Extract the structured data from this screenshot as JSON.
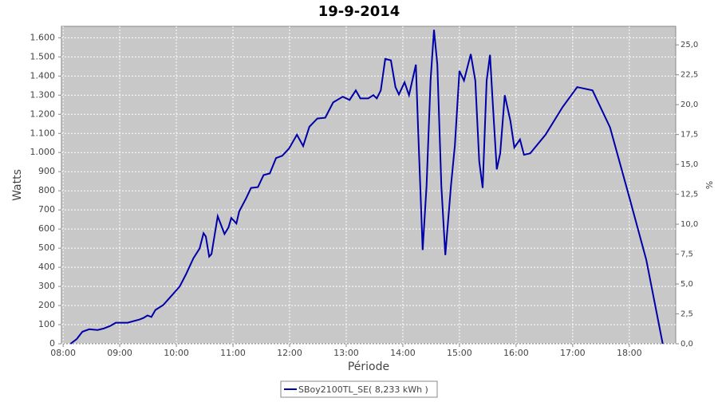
{
  "chart_data": {
    "type": "line",
    "title": "19-9-2014",
    "xlabel": "Période",
    "ylabel": "Watts",
    "y2label": "%",
    "x": [
      8.13,
      8.24,
      8.34,
      8.46,
      8.61,
      8.72,
      8.83,
      8.93,
      9.14,
      9.35,
      9.42,
      9.49,
      9.56,
      9.63,
      9.77,
      9.92,
      10.06,
      10.17,
      10.3,
      10.41,
      10.48,
      10.52,
      10.58,
      10.62,
      10.73,
      10.85,
      10.92,
      10.97,
      11.06,
      11.11,
      11.23,
      11.32,
      11.44,
      11.54,
      11.65,
      11.76,
      11.87,
      11.99,
      12.13,
      12.24,
      12.35,
      12.49,
      12.63,
      12.77,
      12.94,
      13.06,
      13.17,
      13.25,
      13.39,
      13.48,
      13.54,
      13.61,
      13.69,
      13.79,
      13.87,
      13.93,
      14.03,
      14.11,
      14.23,
      14.27,
      14.35,
      14.42,
      14.49,
      14.55,
      14.61,
      14.68,
      14.75,
      14.85,
      14.92,
      15.0,
      15.08,
      15.2,
      15.28,
      15.35,
      15.41,
      15.48,
      15.54,
      15.59,
      15.66,
      15.72,
      15.8,
      15.9,
      15.97,
      16.07,
      16.14,
      16.25,
      16.52,
      16.82,
      17.08,
      17.35,
      17.66,
      18.01,
      18.3,
      18.59
    ],
    "series": [
      {
        "name": "SBoy2100TL_SE( 8,233 kWh )",
        "color": "#0000a8",
        "values": [
          0,
          25,
          63,
          76,
          72,
          80,
          93,
          110,
          110,
          127,
          135,
          148,
          140,
          177,
          203,
          253,
          300,
          363,
          447,
          498,
          578,
          561,
          456,
          469,
          667,
          574,
          608,
          658,
          629,
          692,
          760,
          815,
          819,
          882,
          891,
          971,
          983,
          1021,
          1093,
          1034,
          1135,
          1178,
          1182,
          1262,
          1292,
          1275,
          1325,
          1283,
          1283,
          1300,
          1283,
          1325,
          1490,
          1482,
          1342,
          1304,
          1367,
          1300,
          1460,
          1123,
          490,
          827,
          1376,
          1642,
          1460,
          827,
          464,
          827,
          1038,
          1427,
          1376,
          1515,
          1376,
          954,
          815,
          1376,
          1511,
          1249,
          912,
          996,
          1300,
          1165,
          1026,
          1068,
          988,
          996,
          1093,
          1237,
          1342,
          1325,
          1131,
          756,
          439,
          0
        ]
      }
    ],
    "xlim": [
      7.97,
      18.82
    ],
    "xticks": [
      {
        "value": 8,
        "label": "08:00"
      },
      {
        "value": 9,
        "label": "09:00"
      },
      {
        "value": 10,
        "label": "10:00"
      },
      {
        "value": 11,
        "label": "11:00"
      },
      {
        "value": 12,
        "label": "12:00"
      },
      {
        "value": 13,
        "label": "13:00"
      },
      {
        "value": 14,
        "label": "14:00"
      },
      {
        "value": 15,
        "label": "15:00"
      },
      {
        "value": 16,
        "label": "16:00"
      },
      {
        "value": 17,
        "label": "17:00"
      },
      {
        "value": 18,
        "label": "18:00"
      }
    ],
    "ylim": [
      0,
      1660
    ],
    "yticks": [
      0,
      100,
      200,
      300,
      400,
      500,
      600,
      700,
      800,
      900,
      {
        "value": 1000,
        "label": "1.000"
      },
      {
        "value": 1100,
        "label": "1.100"
      },
      {
        "value": 1200,
        "label": "1.200"
      },
      {
        "value": 1300,
        "label": "1.300"
      },
      {
        "value": 1400,
        "label": "1.400"
      },
      {
        "value": 1500,
        "label": "1.500"
      },
      {
        "value": 1600,
        "label": "1.600"
      }
    ],
    "y2lim": [
      0,
      26.55
    ],
    "y2ticks": [
      {
        "value": 0,
        "label": "0,0"
      },
      {
        "value": 2.5,
        "label": "2,5"
      },
      {
        "value": 5,
        "label": "5,0"
      },
      {
        "value": 7.5,
        "label": "7,5"
      },
      {
        "value": 10,
        "label": "10,0"
      },
      {
        "value": 12.5,
        "label": "12,5"
      },
      {
        "value": 15,
        "label": "15,0"
      },
      {
        "value": 17.5,
        "label": "17,5"
      },
      {
        "value": 20,
        "label": "20,0"
      },
      {
        "value": 22.5,
        "label": "22,5"
      },
      {
        "value": 25,
        "label": "25,0"
      }
    ],
    "grid": true
  }
}
